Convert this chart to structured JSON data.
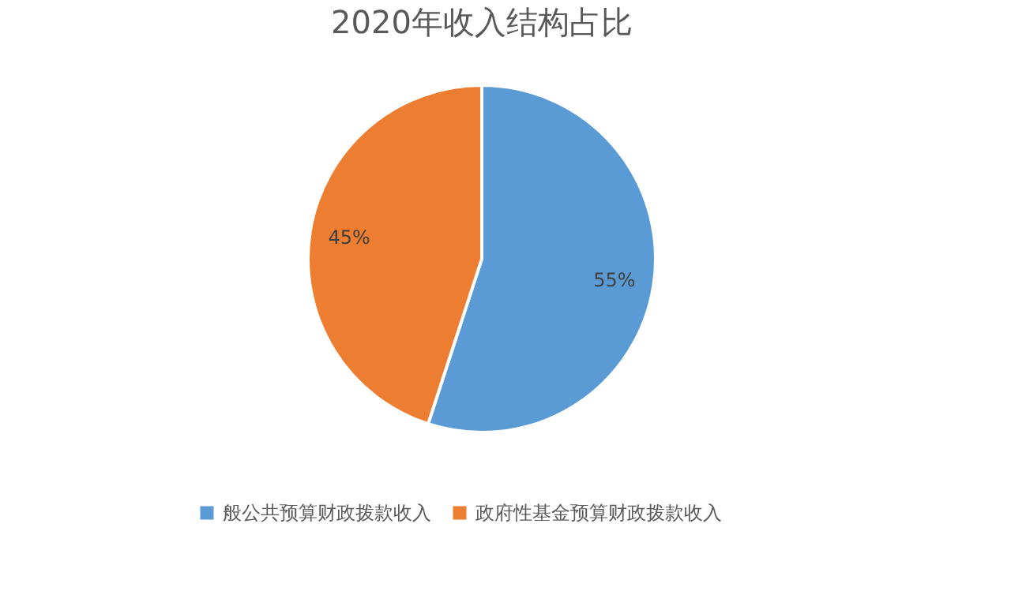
{
  "chart_data": {
    "type": "pie",
    "title": "2020年收入结构占比",
    "categories": [
      "般公共预算财政拨款收入",
      "政府性基金预算财政拨款收入"
    ],
    "values": [
      55,
      45
    ],
    "colors": [
      "#5b9bd5",
      "#ed7d31"
    ],
    "value_labels": [
      "55%",
      "45%"
    ],
    "legend": "bottom"
  }
}
